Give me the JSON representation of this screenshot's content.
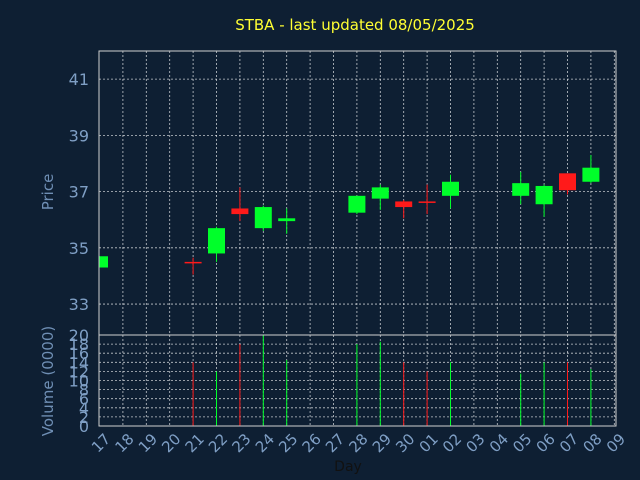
{
  "chart_data": [
    {
      "type": "candlestick",
      "title": "STBA - last updated 08/05/2025",
      "ylabel": "Price",
      "xlabel": "",
      "ylim": [
        31.9,
        42.0
      ],
      "yticks": [
        33,
        35,
        37,
        39,
        41
      ],
      "grid": true,
      "x_tick_labels": [
        "17",
        "18",
        "19",
        "20",
        "21",
        "22",
        "23",
        "24",
        "25",
        "26",
        "27",
        "28",
        "29",
        "30",
        "01",
        "02",
        "03",
        "04",
        "05",
        "06",
        "07",
        "08",
        "09"
      ],
      "candles": [
        {
          "day": "17",
          "open": 34.3,
          "high": 34.7,
          "low": 34.3,
          "close": 34.7
        },
        {
          "day": "21",
          "open": 34.5,
          "high": 34.65,
          "low": 34.05,
          "close": 34.45
        },
        {
          "day": "22",
          "open": 34.8,
          "high": 35.75,
          "low": 34.5,
          "close": 35.7
        },
        {
          "day": "23",
          "open": 36.4,
          "high": 37.15,
          "low": 35.95,
          "close": 36.2
        },
        {
          "day": "24",
          "open": 35.7,
          "high": 36.5,
          "low": 35.6,
          "close": 36.45
        },
        {
          "day": "25",
          "open": 35.95,
          "high": 36.4,
          "low": 35.5,
          "close": 36.05
        },
        {
          "day": "28",
          "open": 36.25,
          "high": 36.85,
          "low": 36.2,
          "close": 36.85
        },
        {
          "day": "29",
          "open": 36.75,
          "high": 37.25,
          "low": 36.35,
          "close": 37.15
        },
        {
          "day": "30",
          "open": 36.65,
          "high": 36.7,
          "low": 36.05,
          "close": 36.45
        },
        {
          "day": "01",
          "open": 36.65,
          "high": 37.25,
          "low": 36.2,
          "close": 36.6
        },
        {
          "day": "02",
          "open": 36.85,
          "high": 37.6,
          "low": 36.4,
          "close": 37.35
        },
        {
          "day": "05",
          "open": 36.85,
          "high": 37.7,
          "low": 36.55,
          "close": 37.3
        },
        {
          "day": "06",
          "open": 36.55,
          "high": 37.25,
          "low": 36.1,
          "close": 37.2
        },
        {
          "day": "07",
          "open": 37.65,
          "high": 37.65,
          "low": 36.9,
          "close": 37.05
        },
        {
          "day": "08",
          "open": 37.35,
          "high": 38.3,
          "low": 37.3,
          "close": 37.85
        }
      ]
    },
    {
      "type": "bar",
      "title": "",
      "xlabel": "Day",
      "ylabel": "Volume (0000)",
      "ylim": [
        0,
        20
      ],
      "yticks": [
        0,
        2,
        4,
        6,
        8,
        10,
        12,
        14,
        16,
        18,
        20
      ],
      "grid": true,
      "x_tick_labels": [
        "17",
        "18",
        "19",
        "20",
        "21",
        "22",
        "23",
        "24",
        "25",
        "26",
        "27",
        "28",
        "29",
        "30",
        "01",
        "02",
        "03",
        "04",
        "05",
        "06",
        "07",
        "08",
        "09"
      ],
      "bars": [
        {
          "day": "21",
          "value": 14,
          "direction": "down"
        },
        {
          "day": "22",
          "value": 12,
          "direction": "up"
        },
        {
          "day": "23",
          "value": 18,
          "direction": "down"
        },
        {
          "day": "24",
          "value": 20,
          "direction": "up"
        },
        {
          "day": "25",
          "value": 14.5,
          "direction": "up"
        },
        {
          "day": "28",
          "value": 18,
          "direction": "up"
        },
        {
          "day": "29",
          "value": 18.5,
          "direction": "up"
        },
        {
          "day": "30",
          "value": 14,
          "direction": "down"
        },
        {
          "day": "01",
          "value": 12,
          "direction": "down"
        },
        {
          "day": "02",
          "value": 14,
          "direction": "up"
        },
        {
          "day": "05",
          "value": 11.5,
          "direction": "up"
        },
        {
          "day": "06",
          "value": 14,
          "direction": "up"
        },
        {
          "day": "07",
          "value": 14,
          "direction": "down"
        },
        {
          "day": "08",
          "value": 12.5,
          "direction": "up"
        }
      ]
    }
  ],
  "colors": {
    "background": "#0e1f33",
    "frame": "#d0d0d0",
    "grid": "#ffffff",
    "title": "#ffff33",
    "axis_label": "#6f8fb5",
    "tick_label": "#7f9fc5",
    "up": "#00ff2a",
    "down": "#ff1a1a",
    "x_label": "#111111"
  }
}
